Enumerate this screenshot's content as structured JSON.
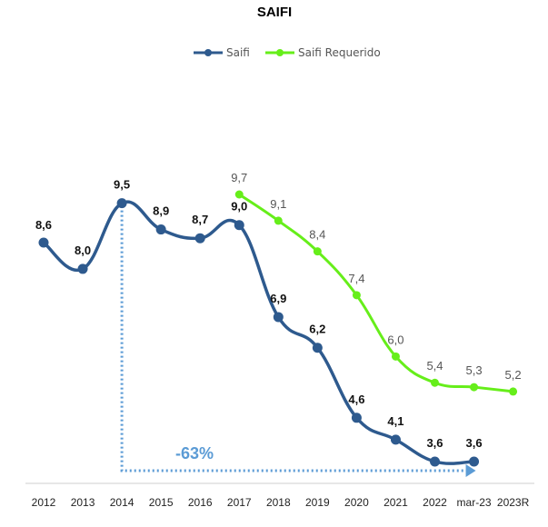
{
  "chart_data": {
    "type": "line",
    "title": "SAIFI",
    "categories": [
      "2012",
      "2013",
      "2014",
      "2015",
      "2016",
      "2017",
      "2018",
      "2019",
      "2020",
      "2021",
      "2022",
      "mar-23",
      "2023R"
    ],
    "series": [
      {
        "name": "Saifi",
        "color": "#2e5a8e",
        "values": [
          8.6,
          8.0,
          9.5,
          8.9,
          8.7,
          9.0,
          6.9,
          6.2,
          4.6,
          4.1,
          3.6,
          3.6,
          null
        ],
        "labels": [
          "8,6",
          "8,0",
          "9,5",
          "8,9",
          "8,7",
          "9,0",
          "6,9",
          "6,2",
          "4,6",
          "4,1",
          "3,6",
          "3,6",
          ""
        ]
      },
      {
        "name": "Saifi Requerido",
        "color": "#66ee1a",
        "values": [
          null,
          null,
          null,
          null,
          null,
          9.7,
          9.1,
          8.4,
          7.4,
          6.0,
          5.4,
          5.3,
          5.2
        ],
        "labels": [
          "",
          "",
          "",
          "",
          "",
          "9,7",
          "9,1",
          "8,4",
          "7,4",
          "6,0",
          "5,4",
          "5,3",
          "5,2"
        ]
      }
    ],
    "ylim": [
      3.6,
      9.7
    ],
    "annotation": {
      "text": "-63%",
      "color": "#5b9bd5",
      "from": "2014",
      "to": "mar-23"
    },
    "xlabel": "",
    "ylabel": "",
    "grid": false,
    "legend_position": "top-center"
  }
}
